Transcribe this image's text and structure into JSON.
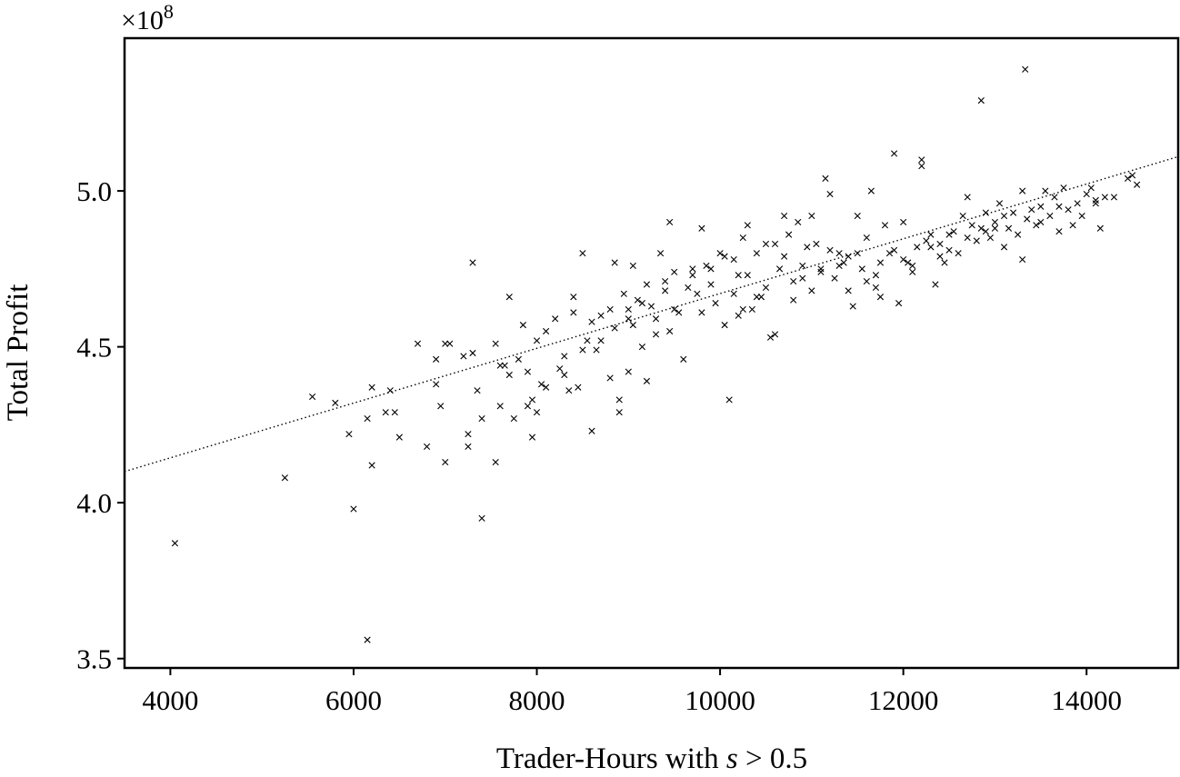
{
  "chart_data": {
    "type": "scatter",
    "title": "",
    "xlabel_prefix": "Trader-Hours with ",
    "xlabel_var": "s",
    "xlabel_suffix": " > 0.5",
    "ylabel": "Total Profit",
    "y_offset_text": "×10",
    "y_offset_exp": "8",
    "xlim": [
      3500,
      15000
    ],
    "ylim": [
      3.47,
      5.49
    ],
    "x_ticks": [
      4000,
      6000,
      8000,
      10000,
      12000,
      14000
    ],
    "x_tick_labels": [
      "4000",
      "6000",
      "8000",
      "10000",
      "12000",
      "14000"
    ],
    "y_ticks": [
      3.5,
      4.0,
      4.5,
      5.0
    ],
    "y_tick_labels": [
      "3.5",
      "4.0",
      "4.5",
      "5.0"
    ],
    "grid": false,
    "marker": "x",
    "trendline": {
      "style": "dotted",
      "points": [
        [
          3500,
          4.1
        ],
        [
          15000,
          5.11
        ]
      ]
    },
    "points": [
      [
        4050,
        3.87
      ],
      [
        5250,
        4.08
      ],
      [
        5550,
        4.34
      ],
      [
        5800,
        4.32
      ],
      [
        5950,
        4.22
      ],
      [
        6000,
        3.98
      ],
      [
        6150,
        3.56
      ],
      [
        6150,
        4.27
      ],
      [
        6200,
        4.37
      ],
      [
        6200,
        4.12
      ],
      [
        6350,
        4.29
      ],
      [
        6400,
        4.36
      ],
      [
        6450,
        4.29
      ],
      [
        6500,
        4.21
      ],
      [
        6700,
        4.51
      ],
      [
        6800,
        4.18
      ],
      [
        6900,
        4.38
      ],
      [
        6900,
        4.46
      ],
      [
        6950,
        4.31
      ],
      [
        7000,
        4.13
      ],
      [
        7000,
        4.51
      ],
      [
        7050,
        4.51
      ],
      [
        7200,
        4.47
      ],
      [
        7250,
        4.18
      ],
      [
        7250,
        4.22
      ],
      [
        7300,
        4.48
      ],
      [
        7300,
        4.77
      ],
      [
        7350,
        4.36
      ],
      [
        7400,
        4.27
      ],
      [
        7400,
        3.95
      ],
      [
        7550,
        4.51
      ],
      [
        7550,
        4.13
      ],
      [
        7600,
        4.31
      ],
      [
        7650,
        4.44
      ],
      [
        7700,
        4.66
      ],
      [
        7700,
        4.41
      ],
      [
        7750,
        4.27
      ],
      [
        7800,
        4.46
      ],
      [
        7850,
        4.57
      ],
      [
        7900,
        4.31
      ],
      [
        7900,
        4.42
      ],
      [
        7950,
        4.21
      ],
      [
        7950,
        4.33
      ],
      [
        8000,
        4.29
      ],
      [
        8000,
        4.52
      ],
      [
        8050,
        4.38
      ],
      [
        8100,
        4.55
      ],
      [
        8100,
        4.37
      ],
      [
        8200,
        4.59
      ],
      [
        8250,
        4.43
      ],
      [
        8300,
        4.41
      ],
      [
        8350,
        4.36
      ],
      [
        8400,
        4.66
      ],
      [
        8400,
        4.61
      ],
      [
        8450,
        4.37
      ],
      [
        8500,
        4.8
      ],
      [
        8500,
        4.49
      ],
      [
        8550,
        4.52
      ],
      [
        8600,
        4.58
      ],
      [
        8600,
        4.23
      ],
      [
        8650,
        4.49
      ],
      [
        8700,
        4.6
      ],
      [
        8800,
        4.4
      ],
      [
        8850,
        4.77
      ],
      [
        8850,
        4.56
      ],
      [
        8900,
        4.29
      ],
      [
        8900,
        4.33
      ],
      [
        8950,
        4.67
      ],
      [
        9000,
        4.62
      ],
      [
        9000,
        4.42
      ],
      [
        9050,
        4.76
      ],
      [
        9050,
        4.57
      ],
      [
        9100,
        4.65
      ],
      [
        9150,
        4.5
      ],
      [
        9200,
        4.39
      ],
      [
        9200,
        4.7
      ],
      [
        9250,
        4.63
      ],
      [
        9300,
        4.59
      ],
      [
        9350,
        4.8
      ],
      [
        9400,
        4.68
      ],
      [
        9450,
        4.9
      ],
      [
        9450,
        4.55
      ],
      [
        9500,
        4.74
      ],
      [
        9550,
        4.61
      ],
      [
        9600,
        4.46
      ],
      [
        9650,
        4.69
      ],
      [
        9700,
        4.75
      ],
      [
        9750,
        4.67
      ],
      [
        9800,
        4.88
      ],
      [
        9800,
        4.61
      ],
      [
        9850,
        4.76
      ],
      [
        9900,
        4.7
      ],
      [
        9950,
        4.64
      ],
      [
        10000,
        4.8
      ],
      [
        10050,
        4.57
      ],
      [
        10100,
        4.33
      ],
      [
        10150,
        4.78
      ],
      [
        10150,
        4.67
      ],
      [
        10200,
        4.6
      ],
      [
        10250,
        4.85
      ],
      [
        10300,
        4.89
      ],
      [
        10300,
        4.73
      ],
      [
        10350,
        4.62
      ],
      [
        10400,
        4.8
      ],
      [
        10450,
        4.66
      ],
      [
        10500,
        4.83
      ],
      [
        10550,
        4.53
      ],
      [
        10600,
        4.54
      ],
      [
        10650,
        4.75
      ],
      [
        10700,
        4.92
      ],
      [
        10750,
        4.86
      ],
      [
        10800,
        4.65
      ],
      [
        10850,
        4.9
      ],
      [
        10900,
        4.76
      ],
      [
        10950,
        4.82
      ],
      [
        11000,
        4.92
      ],
      [
        11050,
        4.83
      ],
      [
        11100,
        4.74
      ],
      [
        11150,
        5.04
      ],
      [
        11200,
        4.99
      ],
      [
        11250,
        4.72
      ],
      [
        11300,
        4.8
      ],
      [
        11350,
        4.77
      ],
      [
        11400,
        4.68
      ],
      [
        11450,
        4.63
      ],
      [
        11500,
        4.92
      ],
      [
        11550,
        4.75
      ],
      [
        11600,
        4.85
      ],
      [
        11650,
        5.0
      ],
      [
        11700,
        4.73
      ],
      [
        11750,
        4.66
      ],
      [
        11800,
        4.89
      ],
      [
        11850,
        4.8
      ],
      [
        11900,
        5.12
      ],
      [
        11950,
        4.64
      ],
      [
        12000,
        4.9
      ],
      [
        12050,
        4.77
      ],
      [
        12100,
        4.74
      ],
      [
        12150,
        4.82
      ],
      [
        12200,
        5.1
      ],
      [
        12200,
        5.08
      ],
      [
        12250,
        4.84
      ],
      [
        12300,
        4.86
      ],
      [
        12350,
        4.7
      ],
      [
        12400,
        4.79
      ],
      [
        12450,
        4.77
      ],
      [
        12500,
        4.81
      ],
      [
        12550,
        4.87
      ],
      [
        12600,
        4.8
      ],
      [
        12650,
        4.92
      ],
      [
        12700,
        4.98
      ],
      [
        12750,
        4.89
      ],
      [
        12800,
        4.84
      ],
      [
        12850,
        5.29
      ],
      [
        12850,
        4.88
      ],
      [
        12900,
        4.93
      ],
      [
        12950,
        4.85
      ],
      [
        13000,
        4.9
      ],
      [
        13050,
        4.96
      ],
      [
        13100,
        4.82
      ],
      [
        13150,
        4.88
      ],
      [
        13200,
        4.93
      ],
      [
        13250,
        4.86
      ],
      [
        13300,
        5.0
      ],
      [
        13300,
        4.78
      ],
      [
        13330,
        5.39
      ],
      [
        13350,
        4.91
      ],
      [
        13400,
        4.94
      ],
      [
        13450,
        4.89
      ],
      [
        13500,
        4.95
      ],
      [
        13550,
        5.0
      ],
      [
        13600,
        4.92
      ],
      [
        13650,
        4.98
      ],
      [
        13700,
        4.87
      ],
      [
        13750,
        5.01
      ],
      [
        13800,
        4.94
      ],
      [
        13850,
        4.89
      ],
      [
        13900,
        4.96
      ],
      [
        13950,
        4.92
      ],
      [
        14000,
        4.99
      ],
      [
        14050,
        5.01
      ],
      [
        14100,
        4.96
      ],
      [
        14150,
        4.88
      ],
      [
        14200,
        4.98
      ],
      [
        14300,
        4.98
      ],
      [
        14450,
        5.04
      ],
      [
        14500,
        5.05
      ],
      [
        14550,
        5.02
      ],
      [
        9700,
        4.73
      ],
      [
        10500,
        4.69
      ],
      [
        11000,
        4.68
      ],
      [
        11600,
        4.71
      ],
      [
        12100,
        4.76
      ],
      [
        12700,
        4.85
      ],
      [
        9300,
        4.54
      ],
      [
        8700,
        4.52
      ],
      [
        10700,
        4.79
      ],
      [
        11200,
        4.81
      ],
      [
        11900,
        4.81
      ],
      [
        12500,
        4.86
      ],
      [
        13100,
        4.92
      ],
      [
        9000,
        4.59
      ],
      [
        10200,
        4.73
      ],
      [
        11400,
        4.79
      ],
      [
        12300,
        4.82
      ],
      [
        8300,
        4.47
      ],
      [
        7600,
        4.44
      ],
      [
        9900,
        4.75
      ],
      [
        10900,
        4.72
      ],
      [
        11700,
        4.69
      ],
      [
        12900,
        4.87
      ],
      [
        13500,
        4.9
      ],
      [
        9500,
        4.62
      ],
      [
        10400,
        4.66
      ],
      [
        11300,
        4.76
      ],
      [
        12000,
        4.78
      ],
      [
        8800,
        4.62
      ],
      [
        9150,
        4.64
      ],
      [
        10050,
        4.79
      ],
      [
        10600,
        4.83
      ],
      [
        11100,
        4.75
      ],
      [
        11500,
        4.8
      ],
      [
        12400,
        4.83
      ],
      [
        13000,
        4.88
      ],
      [
        13700,
        4.95
      ],
      [
        14100,
        4.97
      ],
      [
        9400,
        4.71
      ],
      [
        10250,
        4.62
      ],
      [
        10800,
        4.71
      ],
      [
        11750,
        4.77
      ]
    ]
  }
}
